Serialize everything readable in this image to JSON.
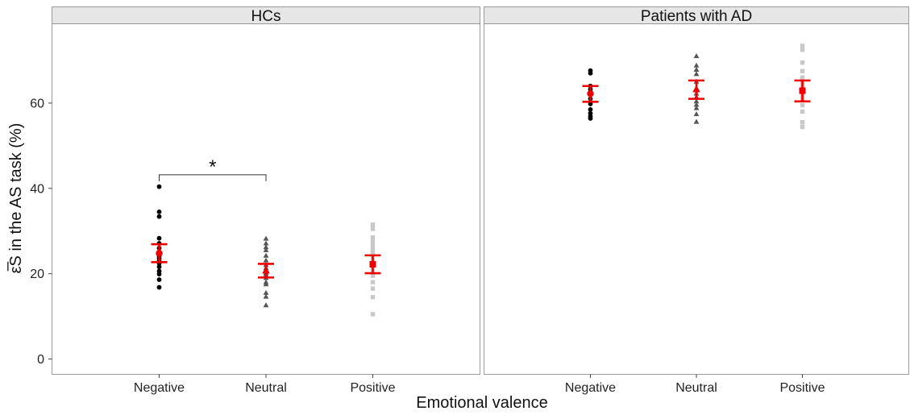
{
  "chart_data": {
    "type": "scatter",
    "xlabel": "Emotional valence",
    "ylabel": "ε̅S in the AS task (%)",
    "ylim": [
      -3.5,
      78.5
    ],
    "yticks": [
      0,
      20,
      40,
      60
    ],
    "grid": false,
    "categories": [
      "Negative",
      "Neutral",
      "Positive"
    ],
    "point_colors": {
      "Negative": "#000000",
      "Neutral": "#555555",
      "Positive": "#c8c8c8"
    },
    "point_shapes": {
      "Negative": "circle",
      "Neutral": "triangle",
      "Positive": "square"
    },
    "summary_color": "#ee0000",
    "panels": [
      {
        "title": "HCs",
        "groups": [
          {
            "category": "Negative",
            "values": [
              40.4,
              34.5,
              33.4,
              28.3,
              27.1,
              26.0,
              25.1,
              24.6,
              24.1,
              23.6,
              23.0,
              22.4,
              21.6,
              20.6,
              19.9,
              18.6,
              16.8
            ],
            "mean": 24.8,
            "ci": [
              22.7,
              26.9
            ]
          },
          {
            "category": "Neutral",
            "values": [
              28.2,
              27.1,
              26.2,
              25.5,
              24.2,
              23.1,
              22.0,
              21.3,
              20.8,
              20.2,
              19.8,
              19.0,
              18.0,
              17.5,
              15.5,
              14.6,
              12.6
            ],
            "mean": 20.7,
            "ci": [
              19.1,
              22.3
            ]
          },
          {
            "category": "Positive",
            "values": [
              31.5,
              30.5,
              28.5,
              27.5,
              26.5,
              25.5,
              24.5,
              23.5,
              23.0,
              22.5,
              21.5,
              20.5,
              19.5,
              18.0,
              16.5,
              14.5,
              10.5
            ],
            "mean": 22.2,
            "ci": [
              20.1,
              24.3
            ]
          }
        ],
        "annotation": {
          "from": "Negative",
          "to": "Neutral",
          "y": 43.2,
          "label": "*"
        }
      },
      {
        "title": "Patients with AD",
        "groups": [
          {
            "category": "Negative",
            "values": [
              67.6,
              67.0,
              64.0,
              63.2,
              62.0,
              61.0,
              59.8,
              58.5,
              57.6,
              56.9,
              56.4
            ],
            "mean": 62.2,
            "ci": [
              60.3,
              64.0
            ]
          },
          {
            "category": "Neutral",
            "values": [
              71.0,
              68.8,
              67.8,
              66.8,
              65.0,
              63.4,
              62.2,
              61.4,
              60.4,
              59.6,
              58.8,
              57.4,
              55.6
            ],
            "mean": 63.2,
            "ci": [
              61.0,
              65.3
            ]
          },
          {
            "category": "Positive",
            "values": [
              73.4,
              72.5,
              69.5,
              67.5,
              66.0,
              65.0,
              64.0,
              63.0,
              62.0,
              61.0,
              59.5,
              58.0,
              55.5,
              54.4
            ],
            "mean": 62.9,
            "ci": [
              60.4,
              65.3
            ]
          }
        ]
      }
    ]
  }
}
